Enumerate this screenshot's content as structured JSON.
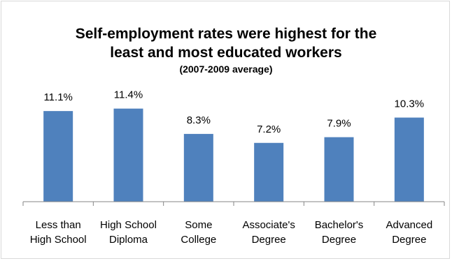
{
  "chart_data": {
    "type": "bar",
    "title_lines": [
      "Self-employment rates were highest for the",
      "least and most educated workers"
    ],
    "subtitle": "(2007-2009 average)",
    "categories": [
      [
        "Less than",
        "High School"
      ],
      [
        "High School",
        "Diploma"
      ],
      [
        "Some",
        "College"
      ],
      [
        "Associate's",
        "Degree"
      ],
      [
        "Bachelor's",
        "Degree"
      ],
      [
        "Advanced",
        "Degree"
      ]
    ],
    "values": [
      11.1,
      11.4,
      8.3,
      7.2,
      7.9,
      10.3
    ],
    "data_labels": [
      "11.1%",
      "11.4%",
      "8.3%",
      "7.2%",
      "7.9%",
      "10.3%"
    ],
    "ylim": [
      0,
      14
    ],
    "grid": false,
    "legend": "none",
    "bar_color": "#4f81bd",
    "axis_color": "#868686"
  }
}
